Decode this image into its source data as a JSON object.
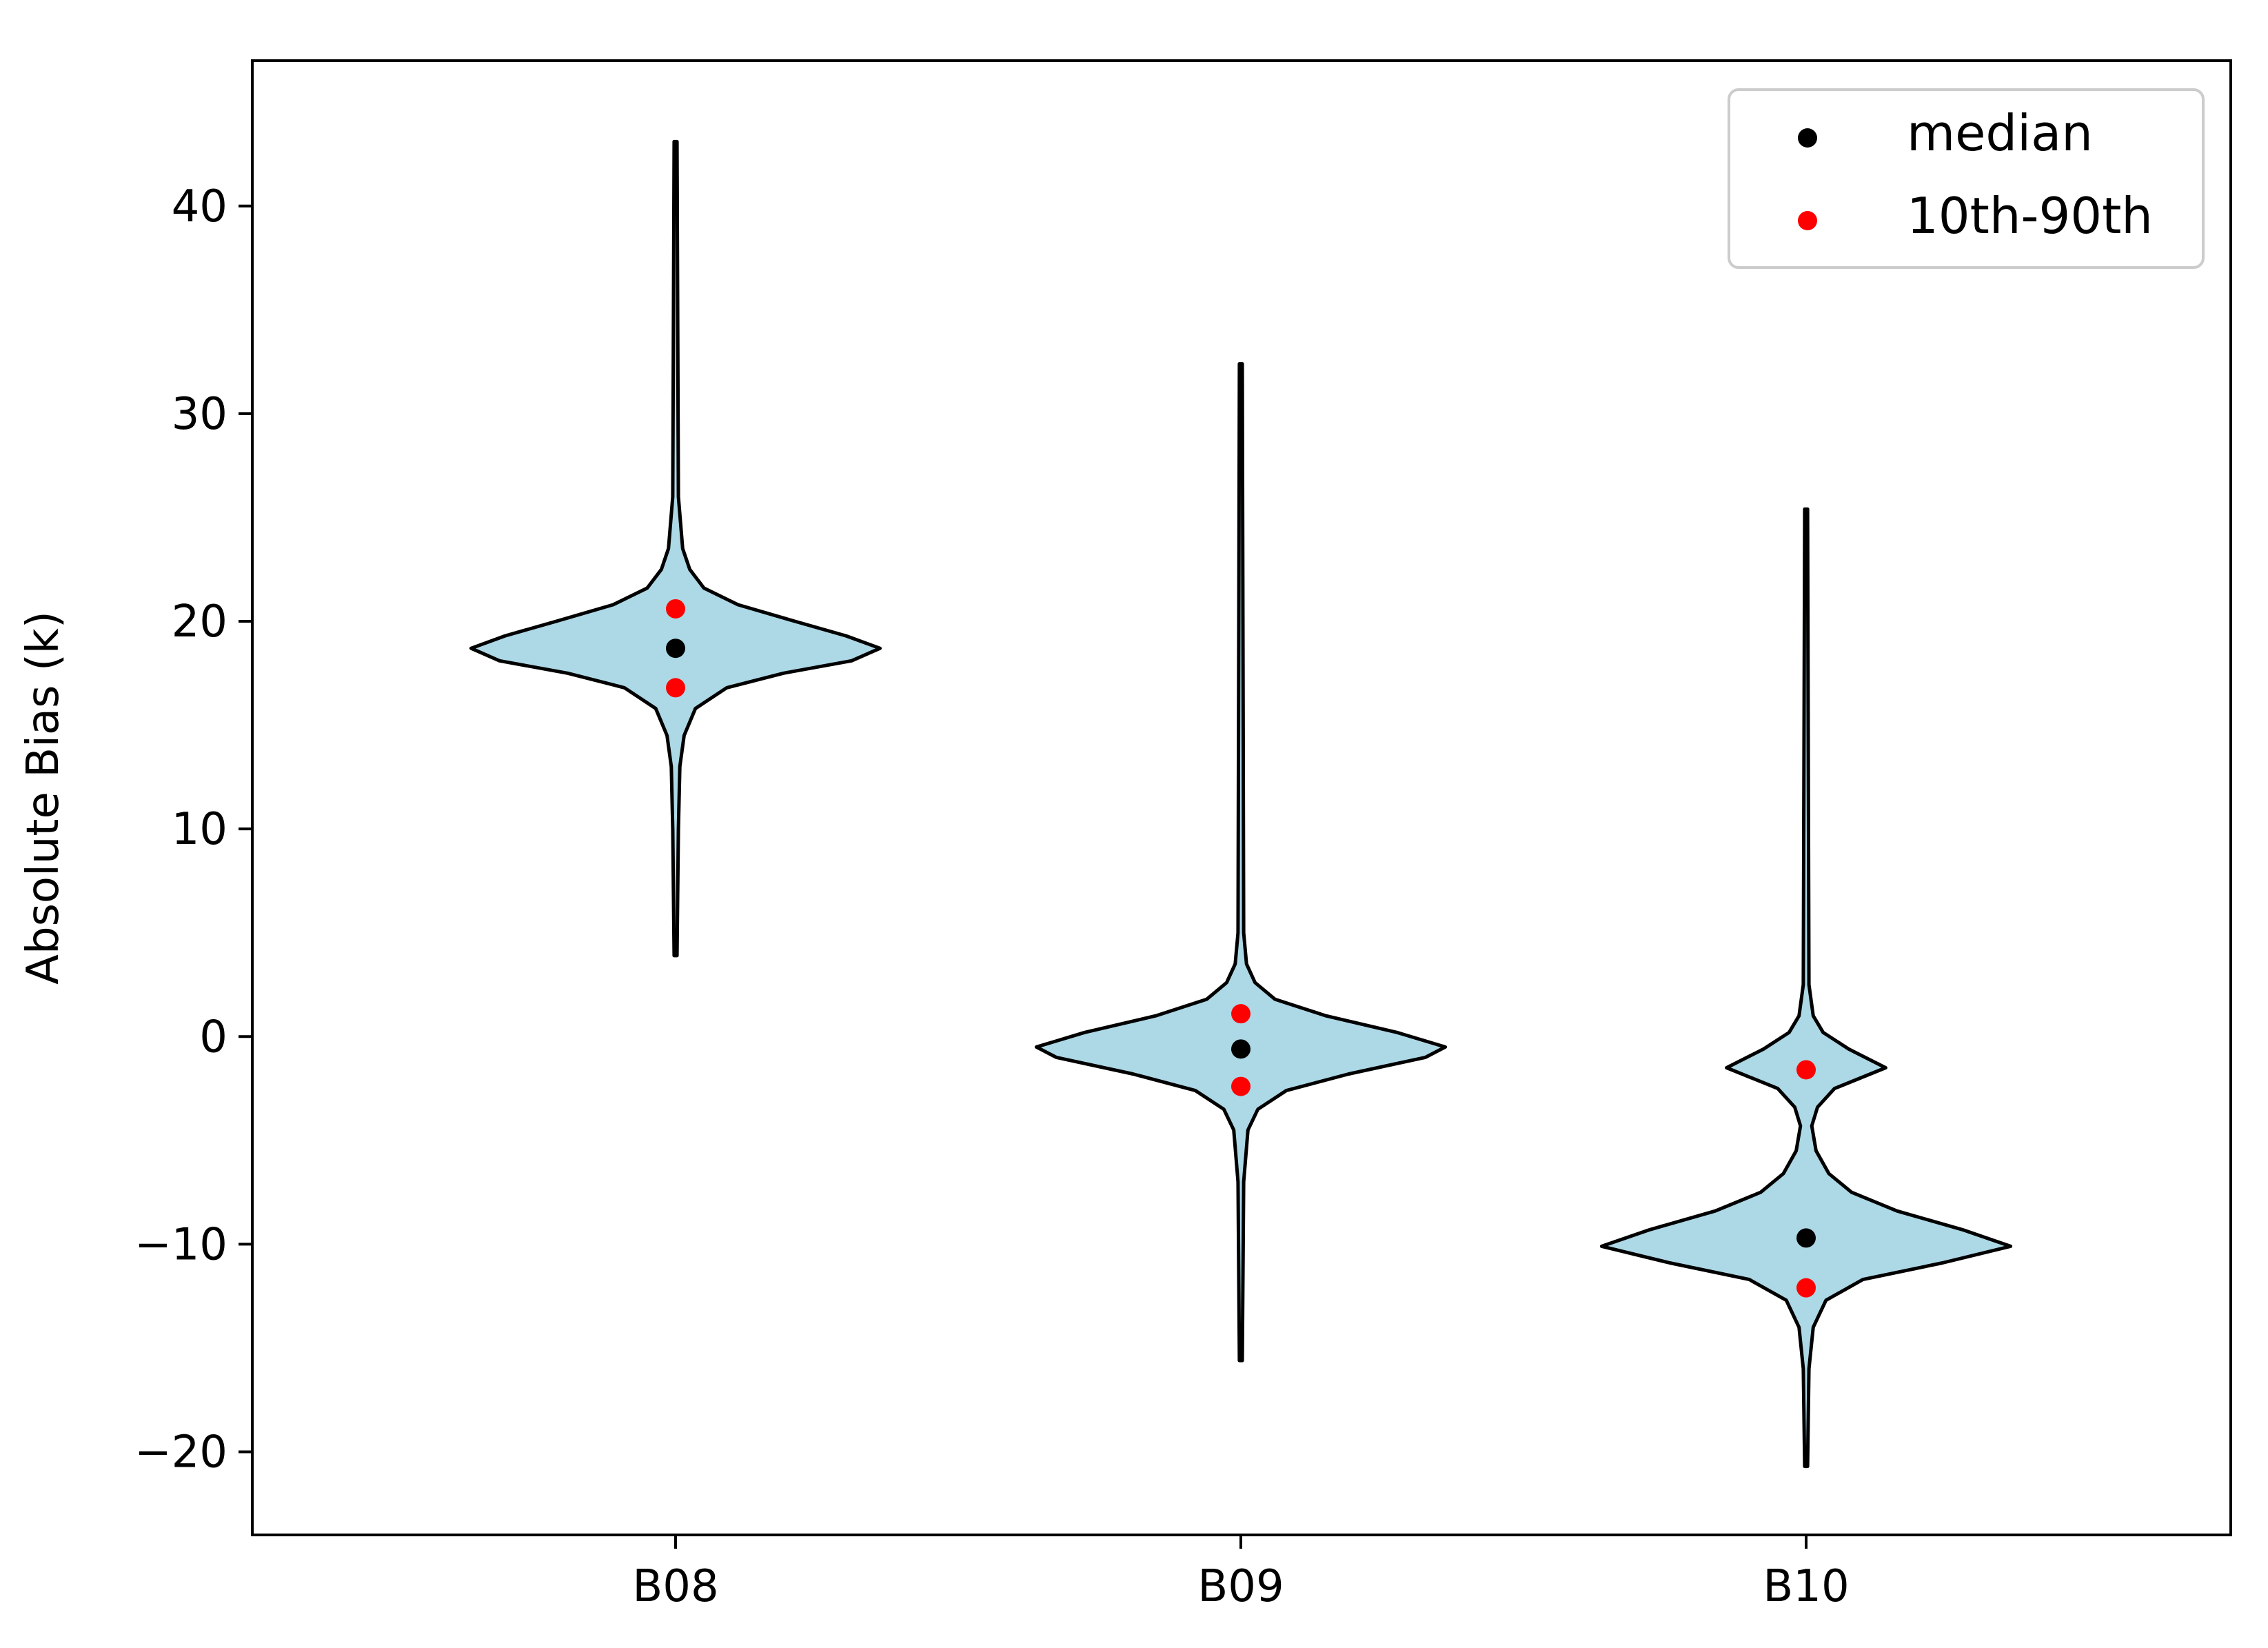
{
  "chart_data": {
    "type": "violin",
    "categories": [
      "B08",
      "B09",
      "B10"
    ],
    "ylabel": "Absolute Bias (k)",
    "xlabel": "",
    "title": "",
    "ylim": [
      -24,
      47
    ],
    "yticks": [
      -20,
      -10,
      0,
      10,
      20,
      30,
      40
    ],
    "ytick_labels": [
      "−20",
      "−10",
      "0",
      "10",
      "20",
      "30",
      "40"
    ],
    "grid": false,
    "legend": {
      "position": "top-right",
      "entries": [
        {
          "label": "median",
          "color": "#000000"
        },
        {
          "label": "10th-90th",
          "color": "#ff0000"
        }
      ]
    },
    "violin_fill": "#add8e6",
    "violins": [
      {
        "category": "B08",
        "min": 3.9,
        "max": 43.1,
        "median": 18.7,
        "p10": 16.8,
        "p90": 20.6,
        "profile": [
          [
            3.9,
            0.5
          ],
          [
            10,
            1
          ],
          [
            13,
            1.5
          ],
          [
            14.5,
            3
          ],
          [
            15.8,
            7
          ],
          [
            16.8,
            18
          ],
          [
            17.5,
            38
          ],
          [
            18.1,
            62
          ],
          [
            18.7,
            72
          ],
          [
            19.3,
            60
          ],
          [
            20,
            42
          ],
          [
            20.8,
            22
          ],
          [
            21.6,
            10
          ],
          [
            22.5,
            5
          ],
          [
            23.5,
            2.5
          ],
          [
            26,
            1
          ],
          [
            43.1,
            0.5
          ]
        ]
      },
      {
        "category": "B09",
        "min": -15.6,
        "max": 32.4,
        "median": -0.6,
        "p10": -2.4,
        "p90": 1.1,
        "profile": [
          [
            -15.6,
            0.5
          ],
          [
            -7,
            1
          ],
          [
            -4.5,
            2.5
          ],
          [
            -3.5,
            6
          ],
          [
            -2.6,
            16
          ],
          [
            -1.8,
            38
          ],
          [
            -1,
            65
          ],
          [
            -0.5,
            72
          ],
          [
            0.2,
            55
          ],
          [
            1,
            30
          ],
          [
            1.8,
            12
          ],
          [
            2.6,
            5
          ],
          [
            3.5,
            2
          ],
          [
            5,
            1
          ],
          [
            32.4,
            0.5
          ]
        ]
      },
      {
        "category": "B10",
        "min": -20.7,
        "max": 25.4,
        "median": -9.7,
        "p10": -12.1,
        "p90": -1.6,
        "profile": [
          [
            -20.7,
            0.5
          ],
          [
            -16,
            1
          ],
          [
            -14,
            2.5
          ],
          [
            -12.7,
            7
          ],
          [
            -11.7,
            20
          ],
          [
            -10.9,
            48
          ],
          [
            -10.1,
            72
          ],
          [
            -9.3,
            55
          ],
          [
            -8.4,
            32
          ],
          [
            -7.5,
            16
          ],
          [
            -6.6,
            8
          ],
          [
            -5.5,
            3.5
          ],
          [
            -4.3,
            2
          ],
          [
            -3.4,
            4
          ],
          [
            -2.5,
            10
          ],
          [
            -1.5,
            28
          ],
          [
            -0.6,
            15
          ],
          [
            0.2,
            6
          ],
          [
            1,
            2.5
          ],
          [
            2.5,
            1
          ],
          [
            25.4,
            0.5
          ]
        ]
      }
    ]
  }
}
